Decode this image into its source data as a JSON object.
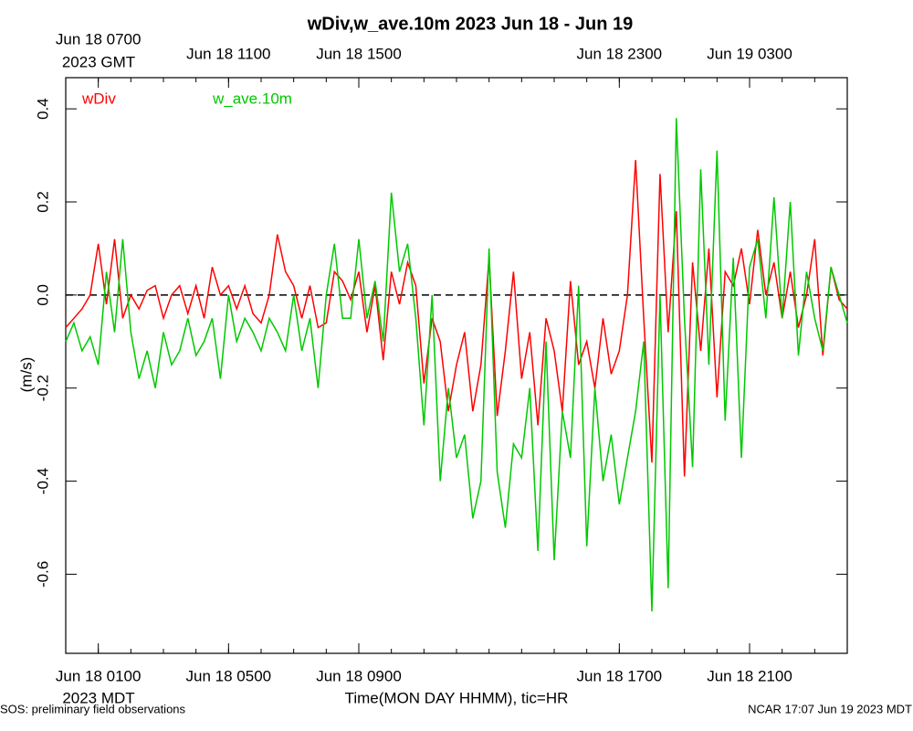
{
  "chart_data": {
    "type": "line",
    "title": "wDiv,w_ave.10m 2023 Jun 18 - Jun 19",
    "ylabel": "(m/s)",
    "xlabel": "Time(MON DAY HHMM), tic=HR",
    "x_zone_label": "2023 MDT",
    "x2_zone_label": "2023 GMT",
    "footer_left": "SOS: preliminary field observations",
    "footer_right": "NCAR 17:07 Jun 19 2023 MDT",
    "xlim": [
      "2023-06-18T00:00",
      "2023-06-19T00:00"
    ],
    "xticks": [
      {
        "value": "2023-06-18T01:00",
        "label": "Jun 18 0100"
      },
      {
        "value": "2023-06-18T05:00",
        "label": "Jun 18 0500"
      },
      {
        "value": "2023-06-18T09:00",
        "label": "Jun 18 0900"
      },
      {
        "value": "2023-06-18T17:00",
        "label": "Jun 18 1700"
      },
      {
        "value": "2023-06-18T21:00",
        "label": "Jun 18 2100"
      }
    ],
    "x2ticks": [
      {
        "value": "2023-06-18T01:00",
        "label": "Jun 18 0700"
      },
      {
        "value": "2023-06-18T05:00",
        "label": "Jun 18 1100"
      },
      {
        "value": "2023-06-18T09:00",
        "label": "Jun 18 1500"
      },
      {
        "value": "2023-06-18T17:00",
        "label": "Jun 18 2300"
      },
      {
        "value": "2023-06-18T21:00",
        "label": "Jun 19 0300"
      }
    ],
    "minor_tick_hours": 1,
    "ylim": [
      -0.77,
      0.467
    ],
    "yticks": [
      -0.6,
      -0.4,
      -0.2,
      {
        "value": 0,
        "label": "0.0"
      },
      0.2,
      0.4
    ],
    "hlines": [
      0
    ],
    "legend": "top-left",
    "x": [
      "2023-06-18T00:00",
      "2023-06-18T00:15",
      "2023-06-18T00:30",
      "2023-06-18T00:45",
      "2023-06-18T01:00",
      "2023-06-18T01:15",
      "2023-06-18T01:30",
      "2023-06-18T01:45",
      "2023-06-18T02:00",
      "2023-06-18T02:15",
      "2023-06-18T02:30",
      "2023-06-18T02:45",
      "2023-06-18T03:00",
      "2023-06-18T03:15",
      "2023-06-18T03:30",
      "2023-06-18T03:45",
      "2023-06-18T04:00",
      "2023-06-18T04:15",
      "2023-06-18T04:30",
      "2023-06-18T04:45",
      "2023-06-18T05:00",
      "2023-06-18T05:15",
      "2023-06-18T05:30",
      "2023-06-18T05:45",
      "2023-06-18T06:00",
      "2023-06-18T06:15",
      "2023-06-18T06:30",
      "2023-06-18T06:45",
      "2023-06-18T07:00",
      "2023-06-18T07:15",
      "2023-06-18T07:30",
      "2023-06-18T07:45",
      "2023-06-18T08:00",
      "2023-06-18T08:15",
      "2023-06-18T08:30",
      "2023-06-18T08:45",
      "2023-06-18T09:00",
      "2023-06-18T09:15",
      "2023-06-18T09:30",
      "2023-06-18T09:45",
      "2023-06-18T10:00",
      "2023-06-18T10:15",
      "2023-06-18T10:30",
      "2023-06-18T10:45",
      "2023-06-18T11:00",
      "2023-06-18T11:15",
      "2023-06-18T11:30",
      "2023-06-18T11:45",
      "2023-06-18T12:00",
      "2023-06-18T12:15",
      "2023-06-18T12:30",
      "2023-06-18T12:45",
      "2023-06-18T13:00",
      "2023-06-18T13:15",
      "2023-06-18T13:30",
      "2023-06-18T13:45",
      "2023-06-18T14:00",
      "2023-06-18T14:15",
      "2023-06-18T14:30",
      "2023-06-18T14:45",
      "2023-06-18T15:00",
      "2023-06-18T15:15",
      "2023-06-18T15:30",
      "2023-06-18T15:45",
      "2023-06-18T16:00",
      "2023-06-18T16:15",
      "2023-06-18T16:30",
      "2023-06-18T16:45",
      "2023-06-18T17:00",
      "2023-06-18T17:15",
      "2023-06-18T17:30",
      "2023-06-18T17:45",
      "2023-06-18T18:00",
      "2023-06-18T18:15",
      "2023-06-18T18:30",
      "2023-06-18T18:45",
      "2023-06-18T19:00",
      "2023-06-18T19:15",
      "2023-06-18T19:30",
      "2023-06-18T19:45",
      "2023-06-18T20:00",
      "2023-06-18T20:15",
      "2023-06-18T20:30",
      "2023-06-18T20:45",
      "2023-06-18T21:00",
      "2023-06-18T21:15",
      "2023-06-18T21:30",
      "2023-06-18T21:45",
      "2023-06-18T22:00",
      "2023-06-18T22:15",
      "2023-06-18T22:30",
      "2023-06-18T22:45",
      "2023-06-18T23:00",
      "2023-06-18T23:15",
      "2023-06-18T23:30",
      "2023-06-18T23:45",
      "2023-06-19T00:00"
    ],
    "series": [
      {
        "name": "wDiv",
        "color": "#ff0000",
        "values": [
          -0.07,
          -0.05,
          -0.03,
          0.0,
          0.11,
          -0.02,
          0.12,
          -0.05,
          0.0,
          -0.03,
          0.01,
          0.02,
          -0.05,
          0.0,
          0.02,
          -0.04,
          0.02,
          -0.05,
          0.06,
          0.0,
          0.02,
          -0.03,
          0.02,
          -0.04,
          -0.06,
          0.0,
          0.13,
          0.05,
          0.02,
          -0.05,
          0.02,
          -0.07,
          -0.06,
          0.05,
          0.03,
          -0.01,
          0.05,
          -0.08,
          0.02,
          -0.14,
          0.05,
          -0.02,
          0.07,
          0.02,
          -0.19,
          -0.05,
          -0.1,
          -0.25,
          -0.15,
          -0.08,
          -0.25,
          -0.15,
          0.08,
          -0.26,
          -0.12,
          0.05,
          -0.18,
          -0.08,
          -0.28,
          -0.05,
          -0.12,
          -0.25,
          0.03,
          -0.15,
          -0.1,
          -0.2,
          -0.05,
          -0.17,
          -0.12,
          0.0,
          0.29,
          -0.05,
          -0.36,
          0.26,
          -0.08,
          0.18,
          -0.39,
          0.07,
          -0.12,
          0.1,
          -0.22,
          0.05,
          0.02,
          0.1,
          -0.02,
          0.14,
          0.0,
          0.07,
          -0.05,
          0.05,
          -0.07,
          0.0,
          0.12,
          -0.13,
          0.06,
          -0.01,
          -0.03
        ]
      },
      {
        "name": "w_ave.10m",
        "color": "#00c800",
        "values": [
          -0.1,
          -0.06,
          -0.12,
          -0.09,
          -0.15,
          0.05,
          -0.08,
          0.12,
          -0.08,
          -0.18,
          -0.12,
          -0.2,
          -0.08,
          -0.15,
          -0.12,
          -0.05,
          -0.13,
          -0.1,
          -0.05,
          -0.18,
          0.0,
          -0.1,
          -0.05,
          -0.08,
          -0.12,
          -0.05,
          -0.08,
          -0.12,
          0.0,
          -0.12,
          -0.05,
          -0.2,
          0.0,
          0.11,
          -0.05,
          -0.05,
          0.12,
          -0.05,
          0.03,
          -0.1,
          0.22,
          0.05,
          0.11,
          -0.05,
          -0.28,
          0.0,
          -0.4,
          -0.2,
          -0.35,
          -0.3,
          -0.48,
          -0.4,
          0.1,
          -0.38,
          -0.5,
          -0.32,
          -0.35,
          -0.2,
          -0.55,
          -0.1,
          -0.57,
          -0.25,
          -0.35,
          0.02,
          -0.54,
          -0.2,
          -0.4,
          -0.3,
          -0.45,
          -0.35,
          -0.25,
          -0.1,
          -0.68,
          0.0,
          -0.63,
          0.38,
          -0.05,
          -0.37,
          0.27,
          -0.15,
          0.31,
          -0.27,
          0.08,
          -0.35,
          0.06,
          0.12,
          -0.05,
          0.21,
          -0.05,
          0.2,
          -0.13,
          0.05,
          -0.05,
          -0.12,
          0.06,
          0.0,
          -0.06
        ]
      }
    ]
  }
}
